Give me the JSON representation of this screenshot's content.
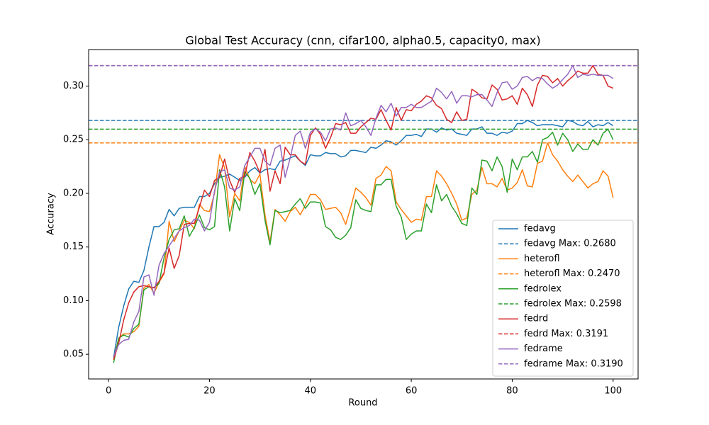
{
  "chart_data": {
    "type": "line",
    "title": "Global Test Accuracy (cnn, cifar100, alpha0.5, capacity0, max)",
    "x_label": "Round",
    "y_label": "Accuracy",
    "xlim": [
      -3.95,
      104.95
    ],
    "ylim": [
      0.027,
      0.334
    ],
    "xticks": [
      0,
      20,
      40,
      60,
      80,
      100
    ],
    "yticks": [
      0.05,
      {
        "value": 0.1,
        "label": "0.10"
      },
      0.15,
      {
        "value": 0.2,
        "label": "0.20"
      },
      0.25,
      {
        "value": 0.3,
        "label": "0.30"
      }
    ],
    "grid": false,
    "legend": "lower right",
    "x": [
      1,
      2,
      3,
      4,
      5,
      6,
      7,
      8,
      9,
      10,
      11,
      12,
      13,
      14,
      15,
      16,
      17,
      18,
      19,
      20,
      21,
      22,
      23,
      24,
      25,
      26,
      27,
      28,
      29,
      30,
      31,
      32,
      33,
      34,
      35,
      36,
      37,
      38,
      39,
      40,
      41,
      42,
      43,
      44,
      45,
      46,
      47,
      48,
      49,
      50,
      51,
      52,
      53,
      54,
      55,
      56,
      57,
      58,
      59,
      60,
      61,
      62,
      63,
      64,
      65,
      66,
      67,
      68,
      69,
      70,
      71,
      72,
      73,
      74,
      75,
      76,
      77,
      78,
      79,
      80,
      81,
      82,
      83,
      84,
      85,
      86,
      87,
      88,
      89,
      90,
      91,
      92,
      93,
      94,
      95,
      96,
      97,
      98,
      99,
      100
    ],
    "series": [
      {
        "name": "fedavg",
        "color": "#1f77b4",
        "max_line": {
          "label": "fedavg Max: 0.2680",
          "value": 0.268
        },
        "values": [
          0.047,
          0.075,
          0.095,
          0.111,
          0.118,
          0.117,
          0.128,
          0.15,
          0.169,
          0.169,
          0.173,
          0.185,
          0.179,
          0.186,
          0.187,
          0.187,
          0.187,
          0.197,
          0.197,
          0.2,
          0.209,
          0.215,
          0.216,
          0.218,
          0.215,
          0.212,
          0.215,
          0.221,
          0.224,
          0.219,
          0.222,
          0.223,
          0.222,
          0.23,
          0.231,
          0.233,
          0.235,
          0.23,
          0.226,
          0.236,
          0.235,
          0.235,
          0.238,
          0.237,
          0.237,
          0.234,
          0.235,
          0.24,
          0.24,
          0.239,
          0.238,
          0.243,
          0.242,
          0.245,
          0.249,
          0.248,
          0.245,
          0.249,
          0.254,
          0.254,
          0.255,
          0.253,
          0.26,
          0.26,
          0.257,
          0.261,
          0.259,
          0.26,
          0.256,
          0.255,
          0.254,
          0.26,
          0.26,
          0.262,
          0.256,
          0.256,
          0.254,
          0.257,
          0.256,
          0.258,
          0.265,
          0.265,
          0.268,
          0.266,
          0.263,
          0.264,
          0.264,
          0.264,
          0.263,
          0.262,
          0.268,
          0.267,
          0.264,
          0.263,
          0.267,
          0.262,
          0.264,
          0.263,
          0.266,
          0.263
        ]
      },
      {
        "name": "heterofl",
        "color": "#ff7f0e",
        "max_line": {
          "label": "heterofl Max: 0.2470",
          "value": 0.247
        },
        "values": [
          0.045,
          0.065,
          0.069,
          0.069,
          0.071,
          0.076,
          0.112,
          0.115,
          0.107,
          0.117,
          0.125,
          0.174,
          0.155,
          0.165,
          0.175,
          0.173,
          0.167,
          0.19,
          0.184,
          0.183,
          0.2,
          0.236,
          0.224,
          0.178,
          0.2,
          0.193,
          0.225,
          0.213,
          0.209,
          0.218,
          0.18,
          0.155,
          0.185,
          0.18,
          0.174,
          0.183,
          0.187,
          0.18,
          0.189,
          0.199,
          0.199,
          0.194,
          0.185,
          0.186,
          0.187,
          0.182,
          0.171,
          0.187,
          0.205,
          0.201,
          0.196,
          0.189,
          0.214,
          0.217,
          0.225,
          0.221,
          0.192,
          0.185,
          0.179,
          0.173,
          0.176,
          0.175,
          0.197,
          0.197,
          0.221,
          0.216,
          0.209,
          0.2,
          0.19,
          0.175,
          0.177,
          0.199,
          0.203,
          0.224,
          0.209,
          0.209,
          0.206,
          0.214,
          0.203,
          0.205,
          0.21,
          0.222,
          0.207,
          0.206,
          0.228,
          0.23,
          0.247,
          0.236,
          0.23,
          0.222,
          0.216,
          0.211,
          0.217,
          0.211,
          0.205,
          0.209,
          0.211,
          0.221,
          0.216,
          0.196
        ]
      },
      {
        "name": "fedrolex",
        "color": "#2ca02c",
        "max_line": {
          "label": "fedrolex Max: 0.2598",
          "value": 0.2598
        },
        "values": [
          0.042,
          0.065,
          0.068,
          0.066,
          0.074,
          0.078,
          0.11,
          0.113,
          0.112,
          0.116,
          0.14,
          0.157,
          0.166,
          0.167,
          0.179,
          0.16,
          0.168,
          0.18,
          0.168,
          0.166,
          0.169,
          0.222,
          0.206,
          0.165,
          0.195,
          0.184,
          0.22,
          0.214,
          0.199,
          0.209,
          0.175,
          0.152,
          0.184,
          0.182,
          0.183,
          0.184,
          0.19,
          0.195,
          0.186,
          0.192,
          0.192,
          0.191,
          0.169,
          0.166,
          0.159,
          0.157,
          0.161,
          0.168,
          0.194,
          0.186,
          0.184,
          0.183,
          0.208,
          0.208,
          0.213,
          0.213,
          0.188,
          0.178,
          0.157,
          0.162,
          0.165,
          0.165,
          0.19,
          0.182,
          0.208,
          0.193,
          0.199,
          0.188,
          0.181,
          0.172,
          0.17,
          0.205,
          0.199,
          0.231,
          0.23,
          0.221,
          0.234,
          0.225,
          0.201,
          0.232,
          0.222,
          0.234,
          0.234,
          0.239,
          0.229,
          0.25,
          0.252,
          0.257,
          0.245,
          0.256,
          0.25,
          0.239,
          0.246,
          0.241,
          0.241,
          0.25,
          0.245,
          0.256,
          0.2598,
          0.25
        ]
      },
      {
        "name": "fedrd",
        "color": "#d62728",
        "max_line": {
          "label": "fedrd Max: 0.3191",
          "value": 0.3191
        },
        "values": [
          0.045,
          0.06,
          0.082,
          0.098,
          0.108,
          0.113,
          0.114,
          0.113,
          0.112,
          0.118,
          0.126,
          0.149,
          0.13,
          0.142,
          0.171,
          0.172,
          0.172,
          0.187,
          0.203,
          0.197,
          0.212,
          0.215,
          0.232,
          0.212,
          0.201,
          0.214,
          0.216,
          0.238,
          0.23,
          0.219,
          0.241,
          0.202,
          0.221,
          0.209,
          0.243,
          0.236,
          0.236,
          0.23,
          0.227,
          0.254,
          0.261,
          0.255,
          0.242,
          0.252,
          0.265,
          0.264,
          0.266,
          0.256,
          0.256,
          0.262,
          0.266,
          0.27,
          0.269,
          0.278,
          0.268,
          0.259,
          0.28,
          0.268,
          0.278,
          0.277,
          0.283,
          0.286,
          0.291,
          0.289,
          0.282,
          0.279,
          0.269,
          0.266,
          0.276,
          0.268,
          0.269,
          0.297,
          0.294,
          0.289,
          0.288,
          0.301,
          0.297,
          0.287,
          0.288,
          0.291,
          0.283,
          0.298,
          0.292,
          0.281,
          0.301,
          0.31,
          0.309,
          0.303,
          0.307,
          0.3,
          0.305,
          0.309,
          0.314,
          0.312,
          0.312,
          0.3191,
          0.311,
          0.31,
          0.3,
          0.298
        ]
      },
      {
        "name": "fedrame",
        "color": "#9467bd",
        "max_line": {
          "label": "fedrame Max: 0.3190",
          "value": 0.319
        },
        "values": [
          0.048,
          0.059,
          0.063,
          0.064,
          0.08,
          0.09,
          0.122,
          0.124,
          0.105,
          0.133,
          0.144,
          0.151,
          0.158,
          0.165,
          0.168,
          0.17,
          0.176,
          0.175,
          0.165,
          0.173,
          0.202,
          0.22,
          0.222,
          0.205,
          0.203,
          0.206,
          0.226,
          0.234,
          0.242,
          0.242,
          0.23,
          0.226,
          0.242,
          0.245,
          0.215,
          0.233,
          0.254,
          0.258,
          0.242,
          0.257,
          0.26,
          0.257,
          0.249,
          0.26,
          0.261,
          0.259,
          0.275,
          0.263,
          0.265,
          0.268,
          0.262,
          0.254,
          0.27,
          0.282,
          0.276,
          0.284,
          0.272,
          0.28,
          0.28,
          0.283,
          0.28,
          0.28,
          0.283,
          0.286,
          0.298,
          0.294,
          0.288,
          0.295,
          0.284,
          0.291,
          0.291,
          0.29,
          0.292,
          0.292,
          0.287,
          0.281,
          0.294,
          0.303,
          0.304,
          0.297,
          0.3,
          0.308,
          0.309,
          0.305,
          0.308,
          0.307,
          0.302,
          0.298,
          0.301,
          0.306,
          0.311,
          0.319,
          0.308,
          0.311,
          0.31,
          0.311,
          0.31,
          0.31,
          0.31,
          0.307
        ]
      }
    ]
  }
}
